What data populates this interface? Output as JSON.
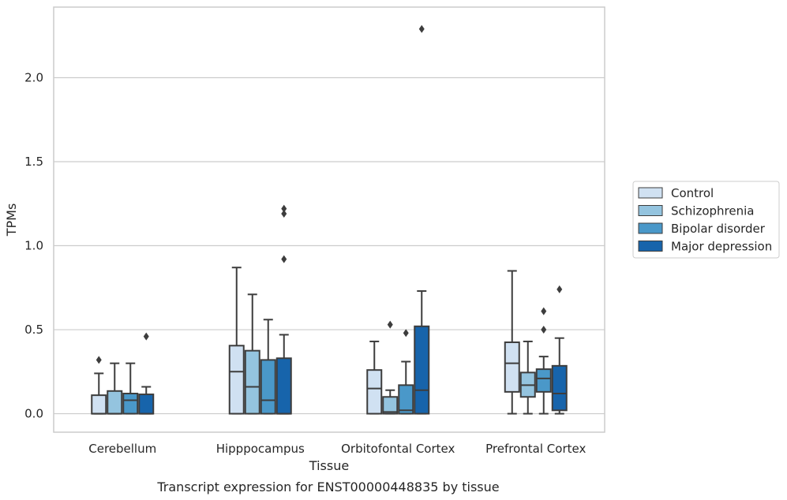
{
  "chart_data": {
    "type": "box",
    "title": "",
    "xlabel": "Tissue",
    "ylabel": "TPMs",
    "caption": "Transcript expression for ENST00000448835 by tissue",
    "ylim": [
      -0.11,
      2.42
    ],
    "yticks": [
      0.0,
      0.5,
      1.0,
      1.5,
      2.0
    ],
    "ytick_labels": [
      "0.0",
      "0.5",
      "1.0",
      "1.5",
      "2.0"
    ],
    "grid": "horizontal",
    "legend_position": "right",
    "categories": [
      "Cerebellum",
      "Hipppocampus",
      "Orbitofontal Cortex",
      "Prefrontal Cortex"
    ],
    "series": [
      {
        "name": "Control",
        "color": "#d0e1f2",
        "boxes": [
          {
            "whislo": 0.0,
            "q1": 0.0,
            "med": 0.0,
            "q3": 0.11,
            "whishi": 0.24,
            "fliers": [
              0.32
            ]
          },
          {
            "whislo": 0.0,
            "q1": 0.0,
            "med": 0.25,
            "q3": 0.405,
            "whishi": 0.87,
            "fliers": []
          },
          {
            "whislo": 0.0,
            "q1": 0.0,
            "med": 0.15,
            "q3": 0.26,
            "whishi": 0.43,
            "fliers": []
          },
          {
            "whislo": 0.0,
            "q1": 0.13,
            "med": 0.3,
            "q3": 0.425,
            "whishi": 0.85,
            "fliers": []
          }
        ]
      },
      {
        "name": "Schizophrenia",
        "color": "#94c4df",
        "boxes": [
          {
            "whislo": 0.0,
            "q1": 0.0,
            "med": 0.0,
            "q3": 0.135,
            "whishi": 0.3,
            "fliers": []
          },
          {
            "whislo": 0.0,
            "q1": 0.0,
            "med": 0.16,
            "q3": 0.375,
            "whishi": 0.71,
            "fliers": []
          },
          {
            "whislo": 0.0,
            "q1": 0.0,
            "med": 0.01,
            "q3": 0.1,
            "whishi": 0.14,
            "fliers": [
              0.53
            ]
          },
          {
            "whislo": 0.0,
            "q1": 0.1,
            "med": 0.17,
            "q3": 0.245,
            "whishi": 0.43,
            "fliers": []
          }
        ]
      },
      {
        "name": "Bipolar disorder",
        "color": "#4a98c9",
        "boxes": [
          {
            "whislo": 0.0,
            "q1": 0.0,
            "med": 0.08,
            "q3": 0.12,
            "whishi": 0.3,
            "fliers": []
          },
          {
            "whislo": 0.0,
            "q1": 0.0,
            "med": 0.08,
            "q3": 0.32,
            "whishi": 0.56,
            "fliers": []
          },
          {
            "whislo": 0.0,
            "q1": 0.0,
            "med": 0.02,
            "q3": 0.17,
            "whishi": 0.31,
            "fliers": [
              0.48
            ]
          },
          {
            "whislo": 0.0,
            "q1": 0.13,
            "med": 0.21,
            "q3": 0.265,
            "whishi": 0.34,
            "fliers": [
              0.5,
              0.61
            ]
          }
        ]
      },
      {
        "name": "Major depression",
        "color": "#1764ab",
        "boxes": [
          {
            "whislo": 0.0,
            "q1": 0.0,
            "med": 0.0,
            "q3": 0.115,
            "whishi": 0.16,
            "fliers": [
              0.46
            ]
          },
          {
            "whislo": 0.0,
            "q1": 0.0,
            "med": 0.0,
            "q3": 0.33,
            "whishi": 0.47,
            "fliers": [
              0.92,
              1.19,
              1.22
            ]
          },
          {
            "whislo": 0.0,
            "q1": 0.0,
            "med": 0.14,
            "q3": 0.52,
            "whishi": 0.73,
            "fliers": [
              2.29
            ]
          },
          {
            "whislo": 0.0,
            "q1": 0.02,
            "med": 0.12,
            "q3": 0.285,
            "whishi": 0.45,
            "fliers": [
              0.74
            ]
          }
        ]
      }
    ]
  }
}
